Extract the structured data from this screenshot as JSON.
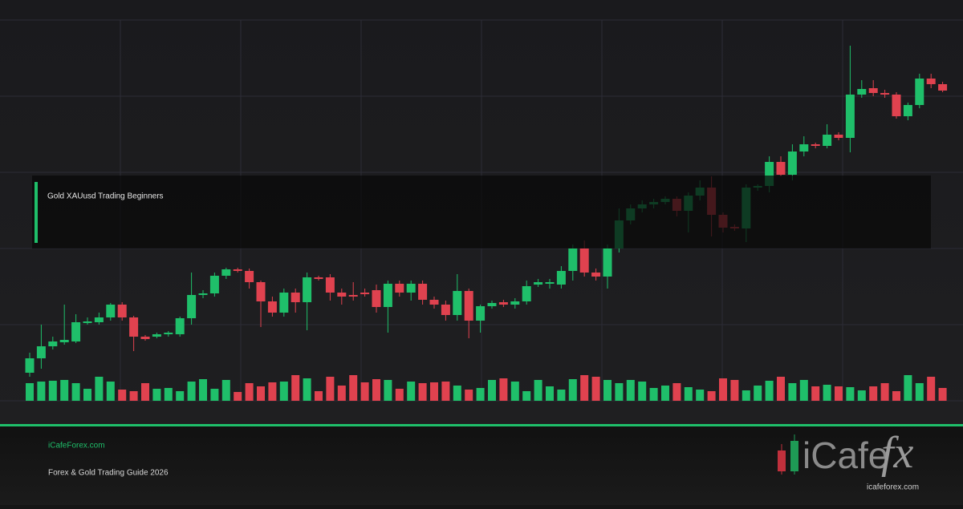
{
  "chart_data": {
    "type": "candlestick",
    "open": [
      35,
      53,
      68,
      73,
      74,
      97,
      98,
      104,
      120,
      104,
      80,
      80,
      83,
      83,
      103,
      132,
      134,
      156,
      164,
      162,
      148,
      124,
      110,
      135,
      123,
      154,
      154,
      135,
      132,
      135,
      138,
      117,
      146,
      135,
      146,
      126,
      120,
      107,
      137,
      100,
      118,
      123,
      120,
      124,
      145,
      146,
      145,
      162,
      190,
      160,
      155,
      190,
      225,
      240,
      245,
      248,
      252,
      237,
      256,
      266,
      232,
      217,
      215,
      266,
      268,
      298,
      282,
      311,
      320,
      318,
      332,
      328,
      382,
      390,
      384,
      382,
      355,
      369,
      402,
      395
    ],
    "close": [
      53,
      68,
      74,
      76,
      98,
      99,
      104,
      120,
      104,
      80,
      77,
      83,
      85,
      103,
      132,
      134,
      156,
      164,
      162,
      148,
      124,
      110,
      135,
      123,
      154,
      152,
      135,
      130,
      130,
      133,
      117,
      146,
      135,
      146,
      126,
      120,
      107,
      137,
      100,
      118,
      122,
      120,
      124,
      143,
      148,
      148,
      162,
      190,
      160,
      155,
      190,
      225,
      240,
      245,
      248,
      252,
      237,
      256,
      266,
      232,
      216,
      215,
      266,
      268,
      298,
      282,
      311,
      320,
      318,
      332,
      328,
      382,
      389,
      384,
      382,
      355,
      369,
      402,
      395,
      387
    ],
    "high": [
      60,
      95,
      80,
      120,
      108,
      104,
      110,
      122,
      123,
      106,
      82,
      85,
      87,
      105,
      160,
      138,
      160,
      166,
      166,
      165,
      150,
      130,
      140,
      140,
      160,
      156,
      158,
      140,
      148,
      140,
      145,
      150,
      150,
      150,
      150,
      130,
      125,
      158,
      140,
      120,
      125,
      126,
      128,
      150,
      152,
      152,
      168,
      195,
      200,
      165,
      195,
      240,
      245,
      250,
      252,
      255,
      255,
      260,
      275,
      280,
      235,
      220,
      270,
      270,
      305,
      305,
      320,
      330,
      322,
      345,
      335,
      443,
      400,
      400,
      388,
      385,
      372,
      408,
      408,
      398
    ],
    "low": [
      30,
      40,
      64,
      70,
      72,
      95,
      95,
      100,
      100,
      62,
      75,
      78,
      80,
      80,
      95,
      128,
      130,
      152,
      160,
      140,
      92,
      105,
      105,
      110,
      88,
      150,
      125,
      120,
      125,
      130,
      110,
      85,
      130,
      125,
      120,
      115,
      100,
      100,
      78,
      85,
      115,
      117,
      115,
      120,
      142,
      140,
      140,
      150,
      155,
      150,
      140,
      185,
      220,
      235,
      240,
      245,
      230,
      210,
      250,
      205,
      210,
      212,
      198,
      262,
      260,
      280,
      275,
      305,
      315,
      315,
      325,
      310,
      378,
      380,
      378,
      352,
      350,
      365,
      390,
      385
    ],
    "volume": [
      22,
      24,
      25,
      26,
      22,
      15,
      30,
      24,
      14,
      12,
      22,
      15,
      16,
      12,
      24,
      27,
      15,
      26,
      11,
      22,
      18,
      23,
      24,
      32,
      28,
      12,
      30,
      19,
      32,
      23,
      27,
      26,
      15,
      24,
      22,
      23,
      24,
      19,
      14,
      16,
      26,
      28,
      24,
      12,
      26,
      18,
      14,
      27,
      32,
      30,
      26,
      22,
      26,
      24,
      16,
      19,
      22,
      17,
      14,
      12,
      28,
      26,
      13,
      19,
      25,
      30,
      22,
      26,
      18,
      20,
      18,
      17,
      13,
      18,
      22,
      12,
      32,
      22,
      30,
      16
    ],
    "ylim": [
      0,
      475
    ],
    "volume_lim": [
      0,
      100
    ],
    "up_color": "#1fbf6a",
    "down_color": "#e0424f"
  },
  "banner": {
    "title": "Gold XAUusd Trading Beginners"
  },
  "footer": {
    "site": "iCafeForex.com",
    "subtitle": "Forex & Gold Trading Guide 2026",
    "logo_left": "iCafe",
    "logo_right": "fx",
    "logo_url": "icafeforex.com"
  }
}
